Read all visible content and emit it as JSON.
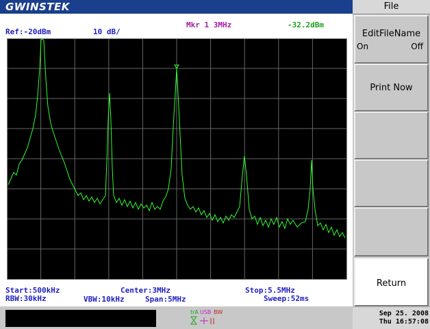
{
  "header": {
    "logo": "GWINSTEK",
    "marker": "Mkr 1 3MHz",
    "marker_level": "-32.2dBm",
    "ref": "Ref:-20dBm",
    "scale": "10 dB/"
  },
  "footer": {
    "start": "Start:500kHz",
    "center": "Center:3MHz",
    "stop": "Stop:5.5MHz",
    "rbw": "RBW:30kHz",
    "vbw": "VBW:10kHz",
    "span": "Span:5MHz",
    "sweep": "Sweep:52ms"
  },
  "menu": {
    "title": "File",
    "buttons": [
      {
        "label": "EditFileName",
        "options": [
          "On",
          "Off"
        ]
      },
      {
        "label": "Print Now"
      },
      {
        "label": "Return"
      }
    ]
  },
  "status": {
    "icons": [
      "trA",
      "USB",
      "BW"
    ],
    "date": "Sep 25. 2008",
    "time": "Thu 16:57:08"
  }
}
